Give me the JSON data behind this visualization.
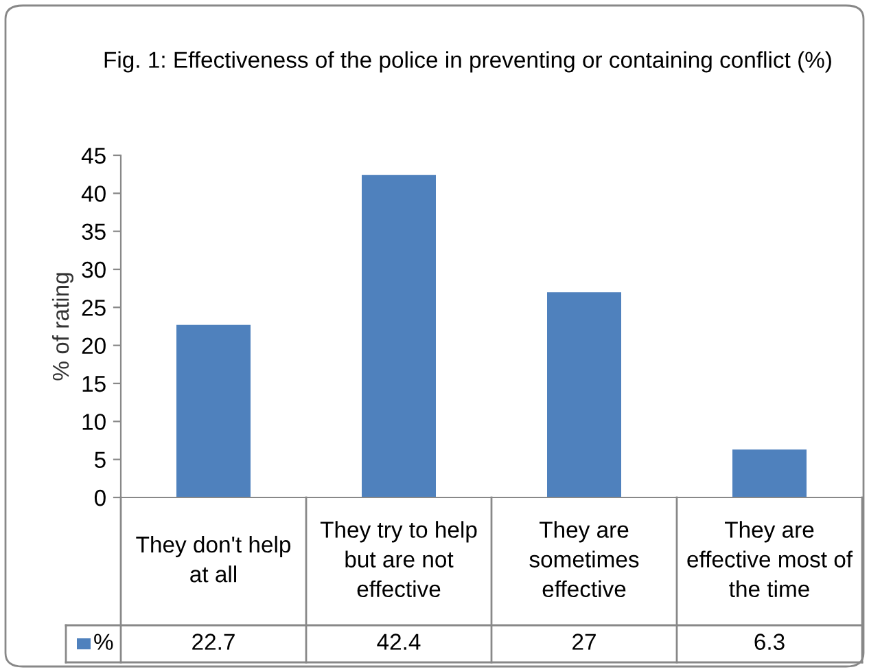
{
  "chart_data": {
    "type": "bar",
    "title": "Fig. 1: Effectiveness of the police in preventing or containing conflict (%)",
    "ylabel": "% of rating",
    "categories": [
      "They don't help at all",
      "They try to help but are not effective",
      "They are sometimes effective",
      "They are effective most of the time"
    ],
    "series": [
      {
        "name": "%",
        "color": "#4f81bd",
        "values": [
          22.7,
          42.4,
          27,
          6.3
        ]
      }
    ],
    "ylim": [
      0,
      45
    ],
    "yticks": [
      0,
      5,
      10,
      15,
      20,
      25,
      30,
      35,
      40,
      45
    ],
    "data_labels": true,
    "grid": false
  }
}
